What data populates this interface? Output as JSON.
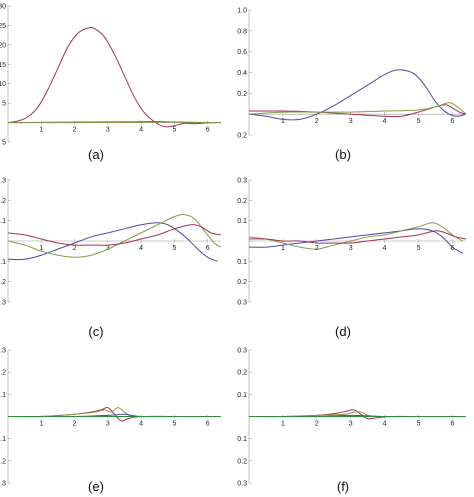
{
  "chart_data": [
    {
      "type": "line",
      "caption": "(a)",
      "xlim": [
        0,
        6.4
      ],
      "ylim": [
        -5,
        30
      ],
      "xticks": [
        "1",
        "2",
        "3",
        "4",
        "5",
        "6"
      ],
      "yticks": [
        "30",
        "25",
        "20",
        "15",
        "10",
        "5",
        "",
        "5"
      ],
      "ytick_values": [
        30,
        25,
        20,
        15,
        10,
        5,
        0,
        -5
      ],
      "series": [
        {
          "color": "#a0305a",
          "x": [
            0,
            0.3,
            0.6,
            0.9,
            1.2,
            1.5,
            1.8,
            2.1,
            2.4,
            2.6,
            2.9,
            3.2,
            3.5,
            3.8,
            4.1,
            4.4,
            4.6,
            4.8,
            5.0,
            5.3,
            5.6,
            5.9,
            6.2,
            6.4
          ],
          "y": [
            0,
            0.4,
            1.5,
            4,
            8.5,
            14,
            19.5,
            23,
            24.3,
            24.2,
            22,
            17.5,
            12,
            6.5,
            2.5,
            0.2,
            -0.8,
            -1.1,
            -0.8,
            -0.2,
            -0.3,
            -0.1,
            0,
            0
          ]
        },
        {
          "color": "#4a4aa8",
          "x": [
            0,
            1,
            2,
            3,
            4,
            4.5,
            5,
            5.5,
            6,
            6.4
          ],
          "y": [
            0,
            0.05,
            0.1,
            0.15,
            0.2,
            0.25,
            0.15,
            0.05,
            0,
            0
          ]
        },
        {
          "color": "#8a9a40",
          "x": [
            0,
            2,
            4,
            5,
            6,
            6.4
          ],
          "y": [
            0,
            0,
            0.05,
            0.1,
            0.02,
            0
          ]
        }
      ]
    },
    {
      "type": "line",
      "caption": "(b)",
      "xlim": [
        0,
        6.4
      ],
      "ylim": [
        -0.2,
        1.0
      ],
      "xticks": [
        "1",
        "2",
        "3",
        "4",
        "5",
        "6"
      ],
      "yticks": [
        "1.0",
        "0.8",
        "0.6",
        "0.4",
        "0.2",
        "",
        "0.2"
      ],
      "ytick_values": [
        1.0,
        0.8,
        0.6,
        0.4,
        0.2,
        0,
        -0.2
      ],
      "series": [
        {
          "color": "#4a4aa8",
          "x": [
            0,
            0.5,
            1,
            1.5,
            2,
            2.5,
            3,
            3.5,
            4,
            4.3,
            4.6,
            4.9,
            5.2,
            5.5,
            5.8,
            6.1,
            6.4
          ],
          "y": [
            0,
            -0.02,
            -0.05,
            -0.05,
            0,
            0.08,
            0.18,
            0.28,
            0.38,
            0.42,
            0.42,
            0.38,
            0.27,
            0.12,
            0.02,
            -0.02,
            0
          ]
        },
        {
          "color": "#a0305a",
          "x": [
            0,
            1,
            2,
            3,
            4,
            4.5,
            5,
            5.5,
            5.8,
            6,
            6.2,
            6.4
          ],
          "y": [
            0.03,
            0.03,
            0.02,
            0,
            -0.02,
            -0.02,
            0.02,
            0.07,
            0.09,
            0.06,
            0.02,
            0
          ]
        },
        {
          "color": "#8a9a40",
          "x": [
            0,
            1,
            2,
            3,
            4,
            5,
            5.5,
            5.9,
            6.1,
            6.3,
            6.4
          ],
          "y": [
            0,
            0.02,
            0.02,
            0.02,
            0.03,
            0.04,
            0.07,
            0.11,
            0.08,
            0.03,
            0
          ]
        }
      ]
    },
    {
      "type": "line",
      "caption": "(c)",
      "xlim": [
        0,
        6.4
      ],
      "ylim": [
        -0.3,
        0.3
      ],
      "xticks": [
        "1",
        "2",
        "3",
        "4",
        "5",
        "6"
      ],
      "yticks": [
        "0.3",
        "0.2",
        "0.1",
        "",
        "0.1",
        "0.2",
        "0.3"
      ],
      "ytick_values": [
        0.3,
        0.2,
        0.1,
        0,
        -0.1,
        -0.2,
        -0.3
      ],
      "series": [
        {
          "color": "#4a4aa8",
          "x": [
            0,
            0.5,
            1,
            1.5,
            2,
            2.5,
            3,
            3.5,
            4,
            4.5,
            4.8,
            5.1,
            5.4,
            5.7,
            6,
            6.3
          ],
          "y": [
            -0.09,
            -0.09,
            -0.07,
            -0.04,
            -0.01,
            0.02,
            0.04,
            0.06,
            0.08,
            0.09,
            0.08,
            0.05,
            0.01,
            -0.04,
            -0.08,
            -0.1
          ]
        },
        {
          "color": "#8a9a40",
          "x": [
            0,
            0.5,
            1,
            1.5,
            2,
            2.5,
            3,
            3.5,
            4,
            4.5,
            5,
            5.3,
            5.6,
            5.9,
            6.2,
            6.4
          ],
          "y": [
            0,
            -0.02,
            -0.05,
            -0.07,
            -0.08,
            -0.07,
            -0.04,
            0,
            0.04,
            0.08,
            0.12,
            0.13,
            0.11,
            0.05,
            -0.01,
            -0.03
          ]
        },
        {
          "color": "#a0305a",
          "x": [
            0,
            0.5,
            1,
            1.5,
            2,
            2.5,
            3,
            3.5,
            4,
            4.5,
            5,
            5.5,
            5.8,
            6.1,
            6.4
          ],
          "y": [
            0.04,
            0.03,
            0.01,
            -0.01,
            -0.02,
            -0.02,
            -0.02,
            -0.01,
            0.01,
            0.03,
            0.06,
            0.08,
            0.07,
            0.04,
            0.03
          ]
        }
      ]
    },
    {
      "type": "line",
      "caption": "(d)",
      "xlim": [
        0,
        6.4
      ],
      "ylim": [
        -0.3,
        0.3
      ],
      "xticks": [
        "1",
        "2",
        "3",
        "4",
        "5",
        "6"
      ],
      "yticks": [
        "0.3",
        "0.2",
        "0.1",
        "",
        "0.1",
        "0.2",
        "0.3"
      ],
      "ytick_values": [
        0.3,
        0.2,
        0.1,
        0,
        -0.1,
        -0.2,
        -0.3
      ],
      "series": [
        {
          "color": "#4a4aa8",
          "x": [
            0,
            0.5,
            1,
            1.5,
            2,
            2.5,
            3,
            3.5,
            4,
            4.5,
            5,
            5.4,
            5.7,
            6,
            6.3
          ],
          "y": [
            -0.03,
            -0.03,
            -0.02,
            -0.01,
            0,
            0.01,
            0.02,
            0.03,
            0.04,
            0.05,
            0.06,
            0.05,
            0.02,
            -0.03,
            -0.06
          ]
        },
        {
          "color": "#8a9a40",
          "x": [
            0,
            0.5,
            1,
            1.5,
            2,
            2.5,
            3,
            3.5,
            4,
            4.5,
            5,
            5.4,
            5.7,
            6,
            6.3
          ],
          "y": [
            0.02,
            0.01,
            -0.01,
            -0.03,
            -0.04,
            -0.02,
            0,
            0.02,
            0.03,
            0.05,
            0.07,
            0.09,
            0.07,
            0.03,
            0
          ]
        },
        {
          "color": "#a0305a",
          "x": [
            0,
            0.5,
            1,
            1.5,
            2,
            2.5,
            3,
            3.5,
            4,
            4.5,
            5,
            5.5,
            5.8,
            6.1,
            6.4
          ],
          "y": [
            0.01,
            0.01,
            0,
            0,
            -0.01,
            -0.01,
            -0.01,
            0,
            0.01,
            0.02,
            0.03,
            0.05,
            0.04,
            0.02,
            0.01
          ]
        }
      ]
    },
    {
      "type": "line",
      "caption": "(e)",
      "xlim": [
        0,
        6.4
      ],
      "ylim": [
        -0.3,
        0.3
      ],
      "xticks": [
        "1",
        "2",
        "3",
        "4",
        "5",
        "6"
      ],
      "yticks": [
        "0.3",
        "0.2",
        "0.1",
        "",
        "0.1",
        "0.2",
        "0.3"
      ],
      "ytick_values": [
        0.3,
        0.2,
        0.1,
        0,
        -0.1,
        -0.2,
        -0.3
      ],
      "series": [
        {
          "color": "#a0305a",
          "x": [
            0,
            1,
            2,
            2.5,
            2.8,
            3.0,
            3.2,
            3.4,
            3.6,
            4,
            5,
            6,
            6.4
          ],
          "y": [
            0,
            0,
            0.01,
            0.02,
            0.03,
            0.04,
            0.01,
            -0.02,
            -0.01,
            0,
            0,
            0,
            0
          ]
        },
        {
          "color": "#8a9a40",
          "x": [
            0,
            1,
            2,
            2.6,
            2.9,
            3.1,
            3.3,
            3.5,
            3.7,
            4,
            5,
            6,
            6.4
          ],
          "y": [
            0,
            0,
            0.01,
            0.02,
            0.03,
            0.02,
            0.04,
            0.02,
            0,
            0,
            0,
            0,
            0
          ]
        },
        {
          "color": "#4a4aa8",
          "x": [
            0,
            1,
            2,
            3,
            3.5,
            4,
            5,
            6,
            6.4
          ],
          "y": [
            0,
            0,
            0,
            0.005,
            0.01,
            0,
            0,
            0,
            0
          ]
        },
        {
          "color": "#2a8a40",
          "x": [
            0,
            1,
            2,
            3,
            4,
            5,
            6,
            6.4
          ],
          "y": [
            0,
            0,
            0,
            0,
            0,
            0,
            0,
            0
          ]
        }
      ]
    },
    {
      "type": "line",
      "caption": "(f)",
      "xlim": [
        0,
        6.4
      ],
      "ylim": [
        -0.3,
        0.3
      ],
      "xticks": [
        "1",
        "2",
        "3",
        "4",
        "5",
        "6"
      ],
      "yticks": [
        "0.3",
        "0.2",
        "0.1",
        "",
        "0.1",
        "0.2",
        "0.3"
      ],
      "ytick_values": [
        0.3,
        0.2,
        0.1,
        0,
        -0.1,
        -0.2,
        -0.3
      ],
      "series": [
        {
          "color": "#a0305a",
          "x": [
            0,
            1,
            2,
            2.6,
            2.9,
            3.1,
            3.3,
            3.5,
            3.8,
            4.2,
            5,
            6,
            6.4
          ],
          "y": [
            0,
            0,
            0.005,
            0.015,
            0.025,
            0.03,
            0.01,
            -0.01,
            -0.005,
            0,
            0,
            0,
            0
          ]
        },
        {
          "color": "#8a9a40",
          "x": [
            0,
            1,
            2,
            2.8,
            3.1,
            3.3,
            3.5,
            3.8,
            4.2,
            5,
            6,
            6.4
          ],
          "y": [
            0,
            0,
            0.005,
            0.01,
            0.02,
            0.02,
            0.005,
            0,
            0,
            0,
            0,
            0
          ]
        },
        {
          "color": "#4a4aa8",
          "x": [
            0,
            1,
            2,
            3,
            4,
            5,
            6,
            6.4
          ],
          "y": [
            0,
            0,
            0,
            0.005,
            0,
            0,
            0,
            0
          ]
        },
        {
          "color": "#2a8a40",
          "x": [
            0,
            1,
            2,
            3,
            4,
            5,
            6,
            6.4
          ],
          "y": [
            0,
            0,
            0,
            0,
            0,
            0,
            0,
            0
          ]
        }
      ]
    }
  ]
}
